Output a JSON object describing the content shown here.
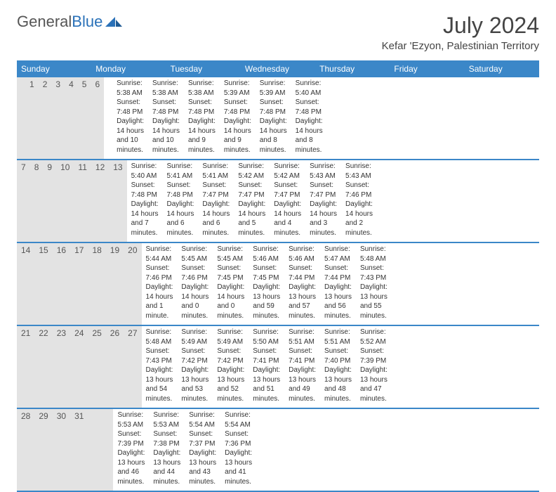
{
  "logo": {
    "text1": "General",
    "text2": "Blue"
  },
  "title": "July 2024",
  "location": "Kefar 'Ezyon, Palestinian Territory",
  "colors": {
    "header_bg": "#3b87c8",
    "header_text": "#ffffff",
    "daynum_bg": "#e3e3e3",
    "text": "#333333",
    "rule": "#3b87c8",
    "background": "#ffffff"
  },
  "dow": [
    "Sunday",
    "Monday",
    "Tuesday",
    "Wednesday",
    "Thursday",
    "Friday",
    "Saturday"
  ],
  "weeks": [
    [
      {
        "n": "",
        "sr": "",
        "ss": "",
        "dl": ""
      },
      {
        "n": "1",
        "sr": "Sunrise: 5:38 AM",
        "ss": "Sunset: 7:48 PM",
        "dl": "Daylight: 14 hours and 10 minutes."
      },
      {
        "n": "2",
        "sr": "Sunrise: 5:38 AM",
        "ss": "Sunset: 7:48 PM",
        "dl": "Daylight: 14 hours and 10 minutes."
      },
      {
        "n": "3",
        "sr": "Sunrise: 5:38 AM",
        "ss": "Sunset: 7:48 PM",
        "dl": "Daylight: 14 hours and 9 minutes."
      },
      {
        "n": "4",
        "sr": "Sunrise: 5:39 AM",
        "ss": "Sunset: 7:48 PM",
        "dl": "Daylight: 14 hours and 9 minutes."
      },
      {
        "n": "5",
        "sr": "Sunrise: 5:39 AM",
        "ss": "Sunset: 7:48 PM",
        "dl": "Daylight: 14 hours and 8 minutes."
      },
      {
        "n": "6",
        "sr": "Sunrise: 5:40 AM",
        "ss": "Sunset: 7:48 PM",
        "dl": "Daylight: 14 hours and 8 minutes."
      }
    ],
    [
      {
        "n": "7",
        "sr": "Sunrise: 5:40 AM",
        "ss": "Sunset: 7:48 PM",
        "dl": "Daylight: 14 hours and 7 minutes."
      },
      {
        "n": "8",
        "sr": "Sunrise: 5:41 AM",
        "ss": "Sunset: 7:48 PM",
        "dl": "Daylight: 14 hours and 6 minutes."
      },
      {
        "n": "9",
        "sr": "Sunrise: 5:41 AM",
        "ss": "Sunset: 7:47 PM",
        "dl": "Daylight: 14 hours and 6 minutes."
      },
      {
        "n": "10",
        "sr": "Sunrise: 5:42 AM",
        "ss": "Sunset: 7:47 PM",
        "dl": "Daylight: 14 hours and 5 minutes."
      },
      {
        "n": "11",
        "sr": "Sunrise: 5:42 AM",
        "ss": "Sunset: 7:47 PM",
        "dl": "Daylight: 14 hours and 4 minutes."
      },
      {
        "n": "12",
        "sr": "Sunrise: 5:43 AM",
        "ss": "Sunset: 7:47 PM",
        "dl": "Daylight: 14 hours and 3 minutes."
      },
      {
        "n": "13",
        "sr": "Sunrise: 5:43 AM",
        "ss": "Sunset: 7:46 PM",
        "dl": "Daylight: 14 hours and 2 minutes."
      }
    ],
    [
      {
        "n": "14",
        "sr": "Sunrise: 5:44 AM",
        "ss": "Sunset: 7:46 PM",
        "dl": "Daylight: 14 hours and 1 minute."
      },
      {
        "n": "15",
        "sr": "Sunrise: 5:45 AM",
        "ss": "Sunset: 7:46 PM",
        "dl": "Daylight: 14 hours and 0 minutes."
      },
      {
        "n": "16",
        "sr": "Sunrise: 5:45 AM",
        "ss": "Sunset: 7:45 PM",
        "dl": "Daylight: 14 hours and 0 minutes."
      },
      {
        "n": "17",
        "sr": "Sunrise: 5:46 AM",
        "ss": "Sunset: 7:45 PM",
        "dl": "Daylight: 13 hours and 59 minutes."
      },
      {
        "n": "18",
        "sr": "Sunrise: 5:46 AM",
        "ss": "Sunset: 7:44 PM",
        "dl": "Daylight: 13 hours and 57 minutes."
      },
      {
        "n": "19",
        "sr": "Sunrise: 5:47 AM",
        "ss": "Sunset: 7:44 PM",
        "dl": "Daylight: 13 hours and 56 minutes."
      },
      {
        "n": "20",
        "sr": "Sunrise: 5:48 AM",
        "ss": "Sunset: 7:43 PM",
        "dl": "Daylight: 13 hours and 55 minutes."
      }
    ],
    [
      {
        "n": "21",
        "sr": "Sunrise: 5:48 AM",
        "ss": "Sunset: 7:43 PM",
        "dl": "Daylight: 13 hours and 54 minutes."
      },
      {
        "n": "22",
        "sr": "Sunrise: 5:49 AM",
        "ss": "Sunset: 7:42 PM",
        "dl": "Daylight: 13 hours and 53 minutes."
      },
      {
        "n": "23",
        "sr": "Sunrise: 5:49 AM",
        "ss": "Sunset: 7:42 PM",
        "dl": "Daylight: 13 hours and 52 minutes."
      },
      {
        "n": "24",
        "sr": "Sunrise: 5:50 AM",
        "ss": "Sunset: 7:41 PM",
        "dl": "Daylight: 13 hours and 51 minutes."
      },
      {
        "n": "25",
        "sr": "Sunrise: 5:51 AM",
        "ss": "Sunset: 7:41 PM",
        "dl": "Daylight: 13 hours and 49 minutes."
      },
      {
        "n": "26",
        "sr": "Sunrise: 5:51 AM",
        "ss": "Sunset: 7:40 PM",
        "dl": "Daylight: 13 hours and 48 minutes."
      },
      {
        "n": "27",
        "sr": "Sunrise: 5:52 AM",
        "ss": "Sunset: 7:39 PM",
        "dl": "Daylight: 13 hours and 47 minutes."
      }
    ],
    [
      {
        "n": "28",
        "sr": "Sunrise: 5:53 AM",
        "ss": "Sunset: 7:39 PM",
        "dl": "Daylight: 13 hours and 46 minutes."
      },
      {
        "n": "29",
        "sr": "Sunrise: 5:53 AM",
        "ss": "Sunset: 7:38 PM",
        "dl": "Daylight: 13 hours and 44 minutes."
      },
      {
        "n": "30",
        "sr": "Sunrise: 5:54 AM",
        "ss": "Sunset: 7:37 PM",
        "dl": "Daylight: 13 hours and 43 minutes."
      },
      {
        "n": "31",
        "sr": "Sunrise: 5:54 AM",
        "ss": "Sunset: 7:36 PM",
        "dl": "Daylight: 13 hours and 41 minutes."
      },
      {
        "n": "",
        "sr": "",
        "ss": "",
        "dl": ""
      },
      {
        "n": "",
        "sr": "",
        "ss": "",
        "dl": ""
      },
      {
        "n": "",
        "sr": "",
        "ss": "",
        "dl": ""
      }
    ]
  ]
}
